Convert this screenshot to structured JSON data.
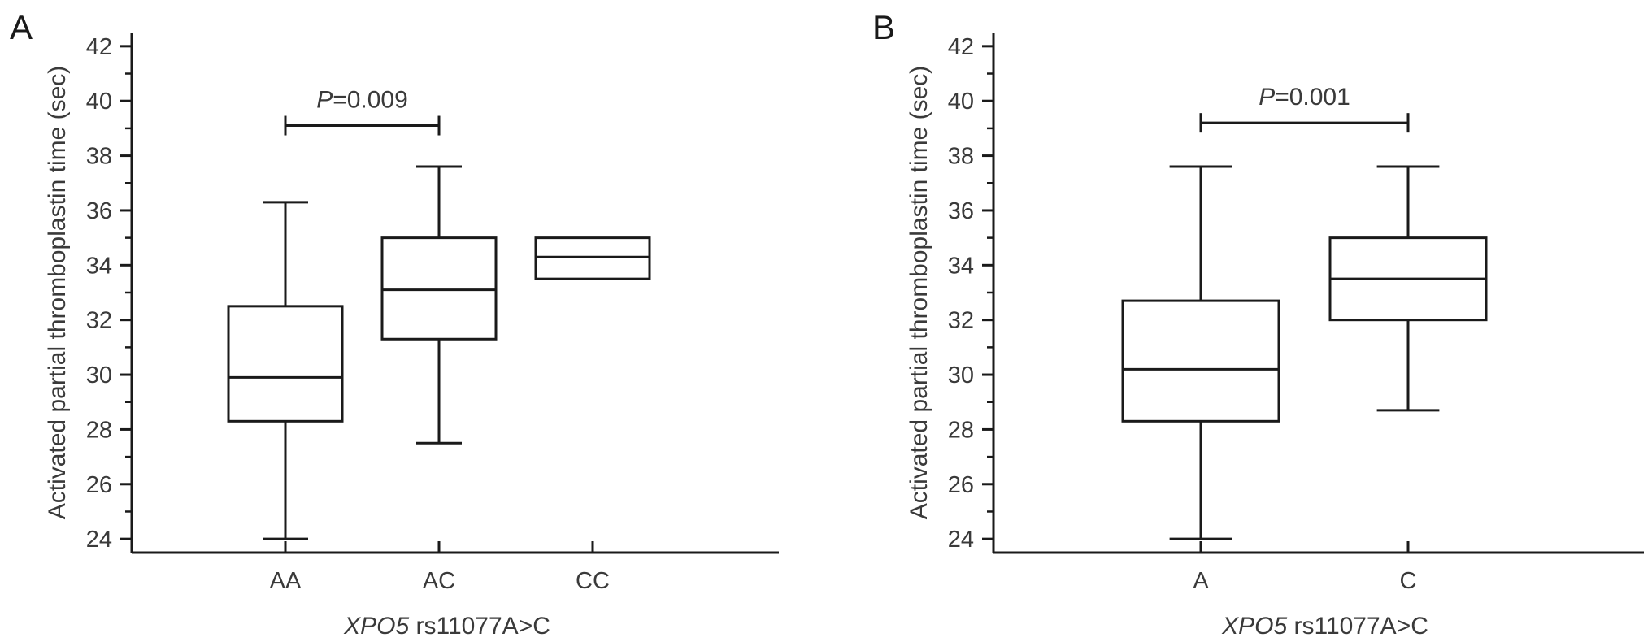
{
  "chart_data": [
    {
      "type": "box",
      "panel_label": "A",
      "ylabel": "Activated partial thromboplastin time (sec)",
      "xlabel_italic": "XPO5",
      "xlabel_rest": " rs11077A>C",
      "ylim": [
        23.5,
        42.5
      ],
      "yticks": [
        24,
        26,
        28,
        30,
        32,
        34,
        36,
        38,
        40,
        42
      ],
      "categories": [
        "AA",
        "AC",
        "CC"
      ],
      "boxes": [
        {
          "category": "AA",
          "min": 24.0,
          "q1": 28.3,
          "median": 29.9,
          "q3": 32.5,
          "max": 36.3
        },
        {
          "category": "AC",
          "min": 27.5,
          "q1": 31.3,
          "median": 33.1,
          "q3": 35.0,
          "max": 37.6
        },
        {
          "category": "CC",
          "min": 33.5,
          "q1": 33.5,
          "median": 34.3,
          "q3": 35.0,
          "max": 35.0
        }
      ],
      "comparison": {
        "from": "AA",
        "to": "AC",
        "y": 39.1,
        "p_symbol": "P",
        "p_text": "=0.009"
      }
    },
    {
      "type": "box",
      "panel_label": "B",
      "ylabel": "Activated partial thromboplastin time (sec)",
      "xlabel_italic": "XPO5",
      "xlabel_rest": " rs11077A>C",
      "ylim": [
        23.5,
        42.5
      ],
      "yticks": [
        24,
        26,
        28,
        30,
        32,
        34,
        36,
        38,
        40,
        42
      ],
      "categories": [
        "A",
        "C"
      ],
      "boxes": [
        {
          "category": "A",
          "min": 24.0,
          "q1": 28.3,
          "median": 30.2,
          "q3": 32.7,
          "max": 37.6
        },
        {
          "category": "C",
          "min": 28.7,
          "q1": 32.0,
          "median": 33.5,
          "q3": 35.0,
          "max": 37.6
        }
      ],
      "comparison": {
        "from": "A",
        "to": "C",
        "y": 39.2,
        "p_symbol": "P",
        "p_text": "=0.001"
      }
    }
  ]
}
